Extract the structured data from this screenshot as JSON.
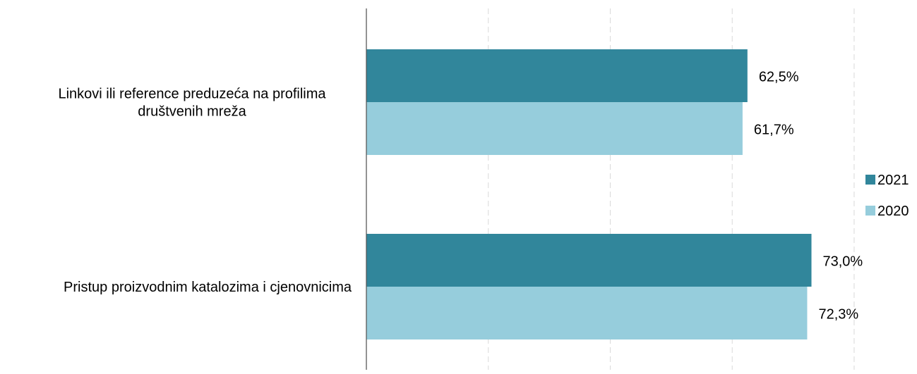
{
  "colors": {
    "series_2021": "#31869B",
    "series_2020": "#96CDDC",
    "grid": "#D9D9D9",
    "axis": "#595959"
  },
  "chart_data": {
    "type": "bar",
    "orientation": "horizontal",
    "categories": [
      [
        "Linkovi ili reference preduzeća na profilima",
        "društvenih mreža"
      ],
      [
        "Pristup proizvodnim katalozima i cjenovnicima"
      ]
    ],
    "series": [
      {
        "name": "2021",
        "values": [
          62.5,
          73.0
        ],
        "labels": [
          "62,5%",
          "73,0%"
        ]
      },
      {
        "name": "2020",
        "values": [
          61.7,
          72.3
        ],
        "labels": [
          "61,7%",
          "72,3%"
        ]
      }
    ],
    "xlim": [
      0,
      80
    ],
    "grid": true,
    "legend_position": "right",
    "tick_labels_shown": false
  }
}
